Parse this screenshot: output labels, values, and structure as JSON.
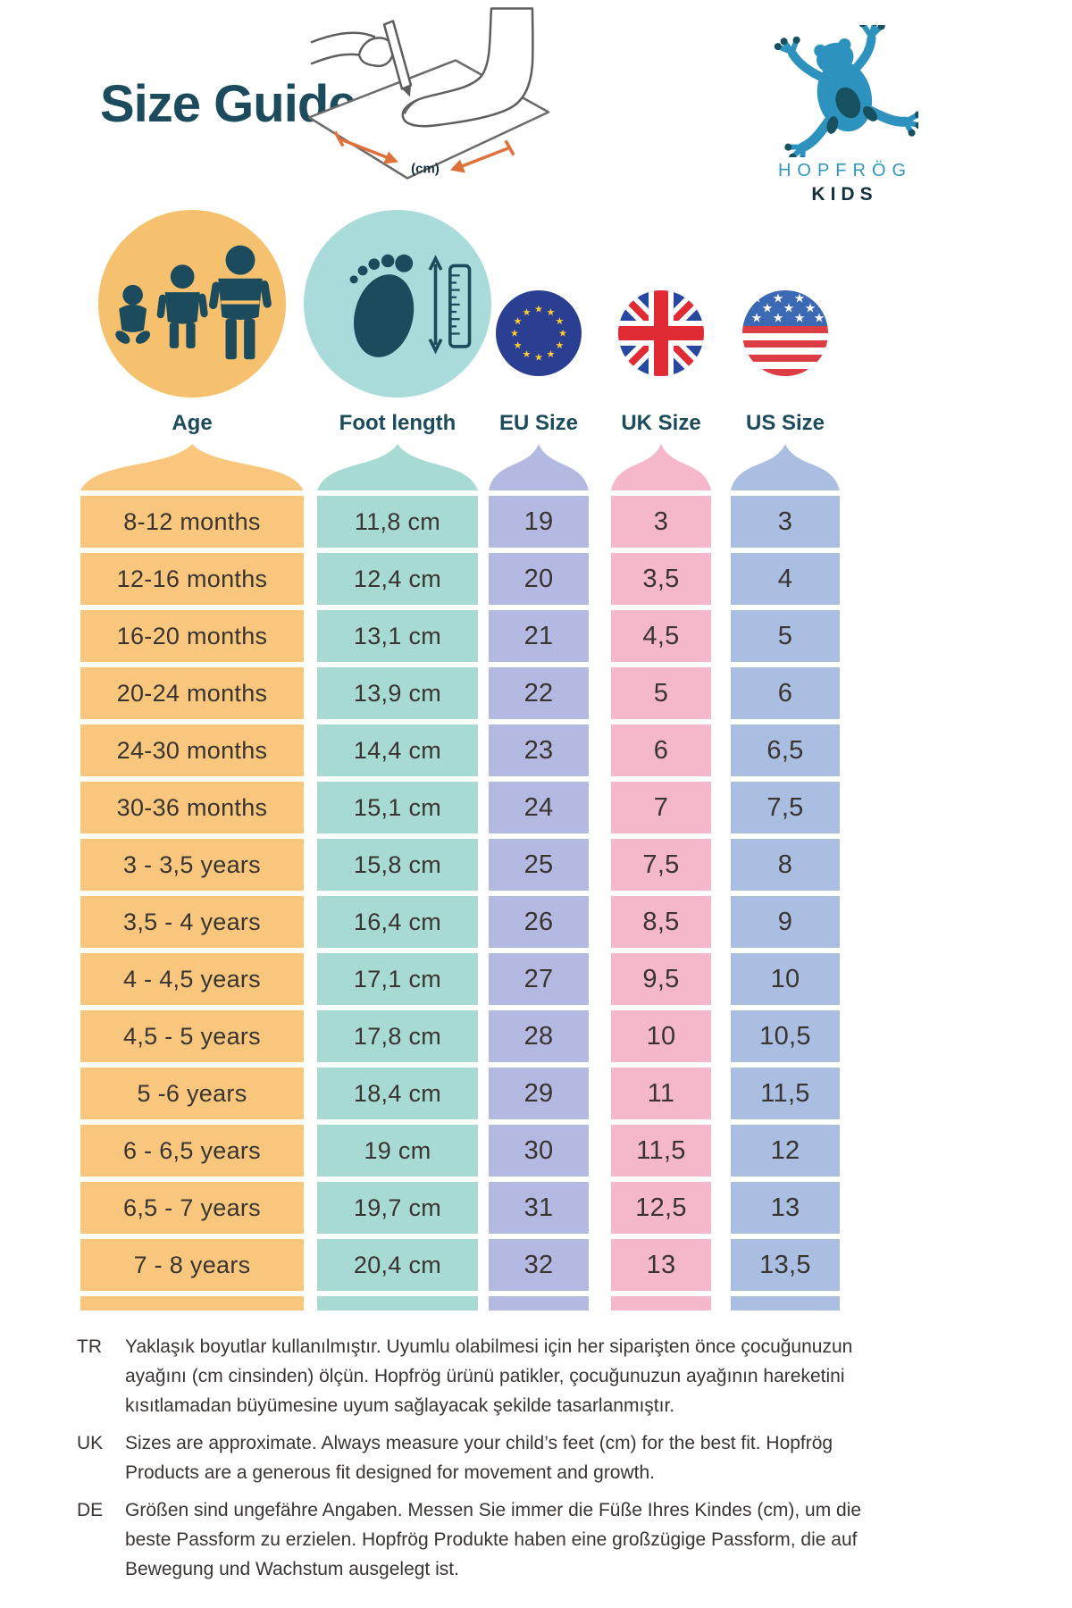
{
  "theme": {
    "ink": "#1B4B5C",
    "text": "#3A3431",
    "brand-blue": "#2F97C2",
    "brand-dark": "#14303D",
    "frog-blue": "#2D93BE",
    "frog-dark": "#17505F",
    "orange": "#E0703A"
  },
  "header": {
    "title": "Size Guide",
    "measure_caption": "(cm)",
    "brand_name": "HOPFRÖG",
    "brand_sub": "KIDS"
  },
  "columns": [
    {
      "key": "age",
      "label": "Age",
      "color": "#F8C77D",
      "circle_color": "#F6C16E",
      "icon": "family-icon"
    },
    {
      "key": "foot",
      "label": "Foot length",
      "color": "#A7DAD3",
      "circle_color": "#A9DBDB",
      "icon": "foot-length-icon"
    },
    {
      "key": "eu",
      "label": "EU Size",
      "color": "#B4B9E1",
      "icon": "eu-flag-icon"
    },
    {
      "key": "uk",
      "label": "UK Size",
      "color": "#F5B8CA",
      "icon": "uk-flag-icon"
    },
    {
      "key": "us",
      "label": "US Size",
      "color": "#A9BEE1",
      "icon": "us-flag-icon"
    }
  ],
  "rows": [
    {
      "age": "8-12 months",
      "foot": "11,8 cm",
      "eu": "19",
      "uk": "3",
      "us": "3"
    },
    {
      "age": "12-16 months",
      "foot": "12,4 cm",
      "eu": "20",
      "uk": "3,5",
      "us": "4"
    },
    {
      "age": "16-20 months",
      "foot": "13,1 cm",
      "eu": "21",
      "uk": "4,5",
      "us": "5"
    },
    {
      "age": "20-24 months",
      "foot": "13,9 cm",
      "eu": "22",
      "uk": "5",
      "us": "6"
    },
    {
      "age": "24-30 months",
      "foot": "14,4 cm",
      "eu": "23",
      "uk": "6",
      "us": "6,5"
    },
    {
      "age": "30-36 months",
      "foot": "15,1 cm",
      "eu": "24",
      "uk": "7",
      "us": "7,5"
    },
    {
      "age": "3 - 3,5 years",
      "foot": "15,8 cm",
      "eu": "25",
      "uk": "7,5",
      "us": "8"
    },
    {
      "age": "3,5 - 4 years",
      "foot": "16,4 cm",
      "eu": "26",
      "uk": "8,5",
      "us": "9"
    },
    {
      "age": "4 - 4,5 years",
      "foot": "17,1 cm",
      "eu": "27",
      "uk": "9,5",
      "us": "10"
    },
    {
      "age": "4,5 - 5 years",
      "foot": "17,8 cm",
      "eu": "28",
      "uk": "10",
      "us": "10,5"
    },
    {
      "age": "5 -6 years",
      "foot": "18,4 cm",
      "eu": "29",
      "uk": "11",
      "us": "11,5"
    },
    {
      "age": "6 - 6,5 years",
      "foot": "19 cm",
      "eu": "30",
      "uk": "11,5",
      "us": "12"
    },
    {
      "age": "6,5 - 7 years",
      "foot": "19,7 cm",
      "eu": "31",
      "uk": "12,5",
      "us": "13"
    },
    {
      "age": "7 - 8 years",
      "foot": "20,4 cm",
      "eu": "32",
      "uk": "13",
      "us": "13,5"
    }
  ],
  "notes": [
    {
      "lang": "TR",
      "text": "Yaklaşık boyutlar kullanılmıştır. Uyumlu olabilmesi için her siparişten önce çocuğunuzun ayağını (cm cinsinden) ölçün. Hopfrög ürünü patikler, çocuğunuzun ayağının hareketini kısıtlamadan büyümesine uyum sağlayacak şekilde tasarlanmıştır."
    },
    {
      "lang": "UK",
      "text": "Sizes are approximate. Always measure your child’s feet (cm) for the best fit. Hopfrög Products are a generous fit designed for movement and growth."
    },
    {
      "lang": "DE",
      "text": "Größen sind ungefähre Angaben. Messen Sie immer die Füße Ihres Kindes (cm), um die beste Passform zu erzielen. Hopfrög Produkte haben eine großzügige Passform, die auf Bewegung und Wachstum ausgelegt ist."
    }
  ]
}
